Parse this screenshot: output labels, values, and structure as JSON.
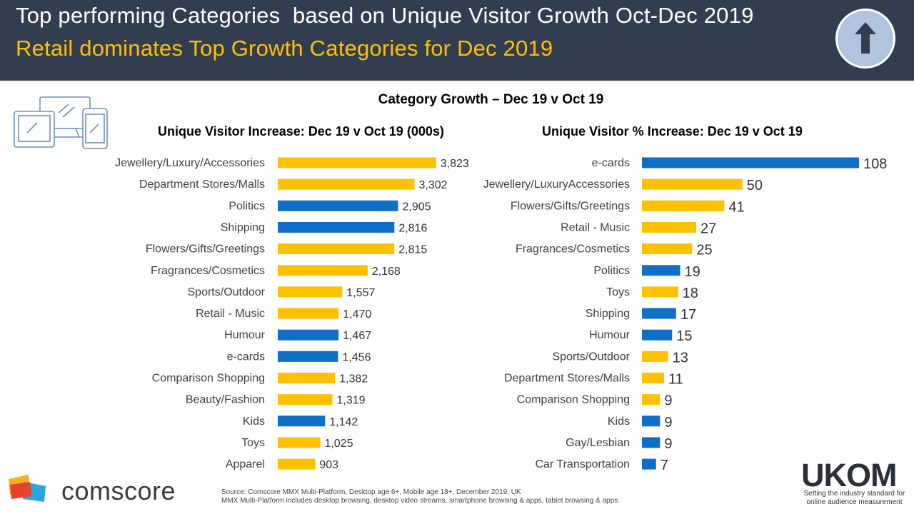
{
  "header": {
    "title": "Top performing Categories  based on Unique Visitor Growth Oct-Dec 2019",
    "subtitle": "Retail dominates Top Growth Categories for Dec 2019",
    "icon": "arrow-up-icon"
  },
  "devices_icon": "devices-icon",
  "colors": {
    "retail": "#ffc000",
    "other": "#0f6fc6",
    "header_bg": "#323e4f",
    "subtitle": "#ffc000"
  },
  "chart_data": [
    {
      "type": "bar",
      "orientation": "horizontal",
      "title": "Category Growth – Dec 19 v Oct 19",
      "subtitle": "Unique Visitor Increase: Dec 19 v Oct 19 (000s)",
      "categories": [
        "Jewellery/Luxury/Accessories",
        "Department Stores/Malls",
        "Politics",
        "Shipping",
        "Flowers/Gifts/Greetings",
        "Fragrances/Cosmetics",
        "Sports/Outdoor",
        "Retail - Music",
        "Humour",
        "e-cards",
        "Comparison Shopping",
        "Beauty/Fashion",
        "Kids",
        "Toys",
        "Apparel"
      ],
      "values": [
        3823,
        3302,
        2905,
        2816,
        2815,
        2168,
        1557,
        1470,
        1467,
        1456,
        1382,
        1319,
        1142,
        1025,
        903
      ],
      "value_labels": [
        "3,823",
        "3,302",
        "2,905",
        "2,816",
        "2,815",
        "2,168",
        "1,557",
        "1,470",
        "1,467",
        "1,456",
        "1,382",
        "1,319",
        "1,142",
        "1,025",
        "903"
      ],
      "colors": [
        "#ffc000",
        "#ffc000",
        "#0f6fc6",
        "#0f6fc6",
        "#ffc000",
        "#ffc000",
        "#ffc000",
        "#ffc000",
        "#0f6fc6",
        "#0f6fc6",
        "#ffc000",
        "#ffc000",
        "#0f6fc6",
        "#ffc000",
        "#ffc000"
      ],
      "xlim": [
        0,
        4000
      ]
    },
    {
      "type": "bar",
      "orientation": "horizontal",
      "subtitle": "Unique Visitor % Increase: Dec 19 v Oct 19",
      "categories": [
        "e-cards",
        "Jewellery/LuxuryAccessories",
        "Flowers/Gifts/Greetings",
        "Retail - Music",
        "Fragrances/Cosmetics",
        "Politics",
        "Toys",
        "Shipping",
        "Humour",
        "Sports/Outdoor",
        "Department Stores/Malls",
        "Comparison Shopping",
        "Kids",
        "Gay/Lesbian",
        "Car Transportation"
      ],
      "values": [
        108,
        50,
        41,
        27,
        25,
        19,
        18,
        17,
        15,
        13,
        11,
        9,
        9,
        9,
        7
      ],
      "value_labels": [
        "108",
        "50",
        "41",
        "27",
        "25",
        "19",
        "18",
        "17",
        "15",
        "13",
        "11",
        "9",
        "9",
        "9",
        "7"
      ],
      "colors": [
        "#0f6fc6",
        "#ffc000",
        "#ffc000",
        "#ffc000",
        "#ffc000",
        "#0f6fc6",
        "#ffc000",
        "#0f6fc6",
        "#0f6fc6",
        "#ffc000",
        "#ffc000",
        "#ffc000",
        "#0f6fc6",
        "#0f6fc6",
        "#0f6fc6"
      ],
      "xlim": [
        0,
        108
      ]
    }
  ],
  "footer": {
    "brand": "comscore",
    "source_line1": "Source: Comscore MMX Multi-Platform,  Desktop age 6+, Mobile age 18+, December 2019, UK",
    "source_line2": "MMX  Multi-Platform  includes desktop browsing, desktop video streams, smartphone browsing & apps, tablet browsing & apps",
    "ukom_name": "UKOM",
    "ukom_tagline": "Setting the industry standard for online audience measurement"
  }
}
